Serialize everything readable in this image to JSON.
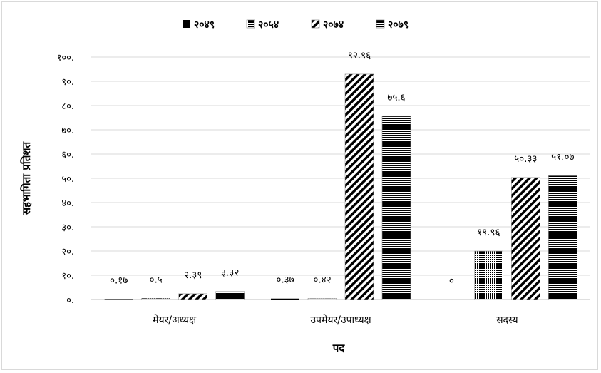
{
  "chart_data": {
    "type": "bar",
    "title": "",
    "xlabel": "पद",
    "ylabel": "सहभागिता प्रतिशत",
    "ylim": [
      0,
      100
    ],
    "yticks": [
      0,
      10,
      20,
      30,
      40,
      50,
      60,
      70,
      80,
      90,
      100
    ],
    "ytick_labels": [
      "०.",
      "१०.",
      "२०.",
      "३०.",
      "४०.",
      "५०.",
      "६०.",
      "७०.",
      "८०.",
      "९०.",
      "१००."
    ],
    "categories": [
      "मेयर/अध्यक्ष",
      "उपमेयर/उपाध्यक्ष",
      "सदस्य"
    ],
    "legend_position": "top",
    "grid": "horizontal",
    "series": [
      {
        "name": "२०४९",
        "pattern": "solid",
        "values": [
          0.17,
          0.37,
          0
        ],
        "labels": [
          "०.१७",
          "०.३७",
          "०"
        ]
      },
      {
        "name": "२०५४",
        "pattern": "checker",
        "values": [
          0.5,
          0.42,
          19.96
        ],
        "labels": [
          "०.५",
          "०.४२",
          "१९.९६"
        ]
      },
      {
        "name": "२०७४",
        "pattern": "diagonal",
        "values": [
          2.39,
          92.96,
          50.33
        ],
        "labels": [
          "२.३९",
          "९२.९६",
          "५०.३३"
        ]
      },
      {
        "name": "२०७९",
        "pattern": "horizontal",
        "values": [
          3.32,
          75.6,
          51.07
        ],
        "labels": [
          "३.३२",
          "७५.६",
          "५१.०७"
        ]
      }
    ]
  }
}
